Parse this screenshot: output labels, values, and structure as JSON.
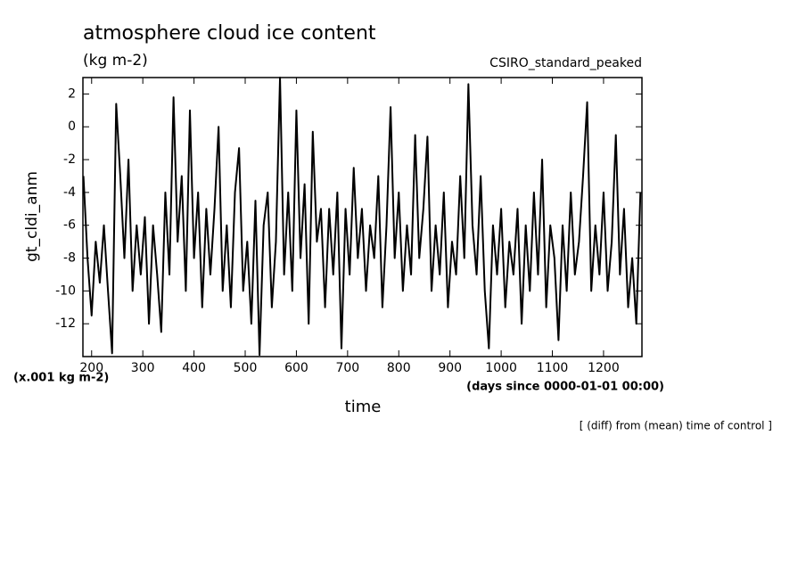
{
  "chart_data": {
    "type": "line",
    "title": "atmosphere cloud ice content",
    "subtitle": "(kg m-2)",
    "run_label": "CSIRO_standard_peaked",
    "y_label": "gt_cldi_anm",
    "y_units": "(x.001 kg m-2)",
    "x_units": "(days since 0000-01-01 00:00)",
    "x_label": "time",
    "note": "[ (diff) from (mean) time of control ]",
    "xlim": [
      183,
      1275
    ],
    "ylim": [
      -14,
      3
    ],
    "xticks": [
      200,
      300,
      400,
      500,
      600,
      700,
      800,
      900,
      1000,
      1100,
      1200
    ],
    "yticks": [
      -12,
      -10,
      -8,
      -6,
      -4,
      -2,
      0,
      2
    ],
    "x": [
      184,
      192,
      200,
      208,
      216,
      224,
      232,
      240,
      248,
      256,
      264,
      272,
      280,
      288,
      296,
      304,
      312,
      320,
      328,
      336,
      344,
      352,
      360,
      368,
      376,
      384,
      392,
      400,
      408,
      416,
      424,
      432,
      440,
      448,
      456,
      464,
      472,
      480,
      488,
      496,
      504,
      512,
      520,
      528,
      536,
      544,
      552,
      560,
      568,
      576,
      584,
      592,
      600,
      608,
      616,
      624,
      632,
      640,
      648,
      656,
      664,
      672,
      680,
      688,
      696,
      704,
      712,
      720,
      728,
      736,
      744,
      752,
      760,
      768,
      776,
      784,
      792,
      800,
      808,
      816,
      824,
      832,
      840,
      848,
      856,
      864,
      872,
      880,
      888,
      896,
      904,
      912,
      920,
      928,
      936,
      944,
      952,
      960,
      968,
      976,
      984,
      992,
      1000,
      1008,
      1016,
      1024,
      1032,
      1040,
      1048,
      1056,
      1064,
      1072,
      1080,
      1088,
      1096,
      1104,
      1112,
      1120,
      1128,
      1136,
      1144,
      1152,
      1160,
      1168,
      1176,
      1184,
      1192,
      1200,
      1208,
      1216,
      1224,
      1232,
      1240,
      1248,
      1256,
      1264,
      1272
    ],
    "series": [
      {
        "color": "#000000",
        "values": [
          -3,
          -8,
          -11.5,
          -7,
          -9.5,
          -6,
          -10,
          -13.8,
          1.4,
          -3,
          -8,
          -2,
          -10,
          -6,
          -9,
          -5.5,
          -12,
          -6,
          -9,
          -12.5,
          -4,
          -9,
          1.8,
          -7,
          -3,
          -10,
          1,
          -8,
          -4,
          -11,
          -5,
          -9,
          -5,
          0,
          -10,
          -6,
          -11,
          -4,
          -1.3,
          -10,
          -7,
          -12,
          -4.5,
          -13.9,
          -6,
          -4,
          -11,
          -7,
          3,
          -9,
          -4,
          -10,
          1,
          -8,
          -3.5,
          -12,
          -0.3,
          -7,
          -5,
          -11,
          -5,
          -9,
          -4,
          -13.5,
          -5,
          -9,
          -2.5,
          -8,
          -5,
          -10,
          -6,
          -8,
          -3,
          -11,
          -6,
          1.2,
          -8,
          -4,
          -10,
          -6,
          -9,
          -0.5,
          -8,
          -5,
          -0.6,
          -10,
          -6,
          -9,
          -4,
          -11,
          -7,
          -9,
          -3,
          -8,
          2.6,
          -6,
          -9,
          -3,
          -10,
          -13.5,
          -6,
          -9,
          -5,
          -11,
          -7,
          -9,
          -5,
          -12,
          -6,
          -10,
          -4,
          -9,
          -2,
          -11,
          -6,
          -8,
          -13,
          -6,
          -10,
          -4,
          -9,
          -7,
          -3,
          1.5,
          -10,
          -6,
          -9,
          -4,
          -10,
          -7,
          -0.5,
          -9,
          -5,
          -11,
          -8,
          -12,
          -4
        ]
      }
    ]
  }
}
